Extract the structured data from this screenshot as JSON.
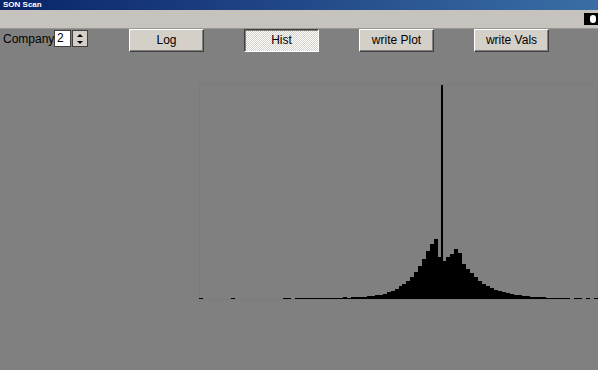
{
  "window": {
    "title": "SON Scan"
  },
  "toolbar": {
    "company_label": "Company:",
    "company_value": 2,
    "buttons": [
      "Log",
      "Hist",
      "write Plot",
      "write Vals"
    ]
  },
  "chart_data": {
    "type": "histogram",
    "bins": [
      -244,
      -240,
      -236,
      -232,
      -228,
      -224,
      -220,
      -216,
      -212,
      -208,
      -204,
      -200,
      -196,
      -192,
      -188,
      -184,
      -180,
      -176,
      -172,
      -168,
      -164,
      -160,
      -156,
      -152,
      -148,
      -144,
      -140,
      -136,
      -132,
      -128,
      -124,
      -120,
      -116,
      -112,
      -108,
      -104,
      -100,
      -96,
      -92,
      -88,
      -84,
      -80,
      -76,
      -72,
      -68,
      -64,
      -60,
      -56,
      -52,
      -48,
      -44,
      -40,
      -36,
      -32,
      -28,
      -24,
      -20,
      -16,
      -12,
      -8,
      -4,
      -1,
      1,
      4,
      8,
      12,
      16,
      20,
      24,
      28,
      32,
      36,
      40,
      44,
      48,
      52,
      56,
      60,
      64,
      68,
      72,
      76,
      80,
      84,
      88,
      92,
      96,
      100,
      104,
      108,
      112,
      116,
      120,
      124,
      128,
      132,
      136,
      140,
      144,
      148,
      152,
      156
    ],
    "values": [
      1,
      0,
      0,
      0,
      0,
      0,
      0,
      0,
      1,
      0,
      0,
      0,
      0,
      0,
      0,
      0,
      0,
      0,
      0,
      0,
      0,
      1,
      1,
      0,
      1,
      1,
      1,
      1,
      1,
      1,
      1,
      1,
      1,
      1,
      1,
      1,
      2,
      1,
      2,
      2,
      2,
      2,
      3,
      3,
      4,
      4,
      5,
      7,
      8,
      10,
      13,
      15,
      18,
      22,
      27,
      33,
      40,
      48,
      55,
      60,
      42,
      214,
      38,
      42,
      45,
      50,
      46,
      35,
      30,
      26,
      22,
      18,
      15,
      13,
      11,
      9,
      8,
      7,
      6,
      5,
      4,
      4,
      3,
      3,
      2,
      2,
      2,
      2,
      1,
      1,
      1,
      1,
      1,
      1,
      0,
      1,
      1,
      0,
      1,
      0,
      1
    ],
    "color": "#000000",
    "xlim": [
      -244,
      156
    ],
    "ylim": [
      0,
      215
    ],
    "tick_labels": false,
    "grid": false
  }
}
